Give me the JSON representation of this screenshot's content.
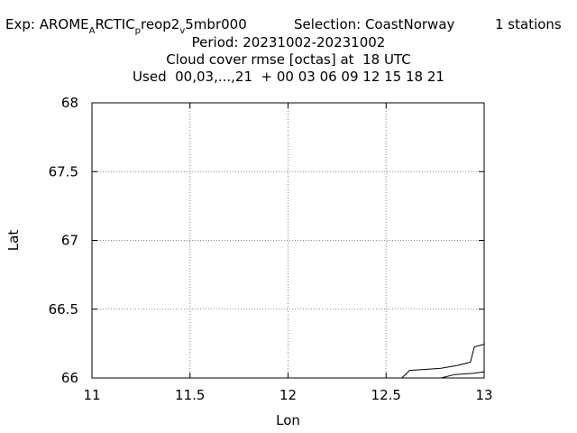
{
  "header": {
    "exp_prefix": "Exp: AROME",
    "exp_sub1": "A",
    "exp_mid": "RCTIC",
    "exp_sub2": "p",
    "exp_mid2": "reop2",
    "exp_sub3": "v",
    "exp_end": "5mbr000",
    "selection": "Selection: CoastNorway",
    "stations": "1 stations",
    "period": "Period: 20231002-20231002",
    "subtitle": "Cloud cover rmse [octas] at  18 UTC",
    "used": "Used  00,03,...,21  + 00 03 06 09 12 15 18 21"
  },
  "chart_data": {
    "type": "map",
    "xlabel": "Lon",
    "ylabel": "Lat",
    "xlim": [
      11,
      13
    ],
    "ylim": [
      66,
      68
    ],
    "xticks": [
      {
        "value": 11,
        "label": "11"
      },
      {
        "value": 11.5,
        "label": "11.5"
      },
      {
        "value": 12,
        "label": "12"
      },
      {
        "value": 12.5,
        "label": "12.5"
      },
      {
        "value": 13,
        "label": "13"
      }
    ],
    "yticks": [
      {
        "value": 66,
        "label": "66"
      },
      {
        "value": 66.5,
        "label": "66.5"
      },
      {
        "value": 67,
        "label": "67"
      },
      {
        "value": 67.5,
        "label": "67.5"
      },
      {
        "value": 68,
        "label": "68"
      }
    ],
    "grid": true,
    "coastlines": [
      {
        "points": [
          [
            12.58,
            66.0
          ],
          [
            12.62,
            66.055
          ],
          [
            12.7,
            66.062
          ],
          [
            12.78,
            66.07
          ],
          [
            12.86,
            66.09
          ],
          [
            12.93,
            66.115
          ],
          [
            12.95,
            66.225
          ],
          [
            13.0,
            66.245
          ]
        ]
      },
      {
        "points": [
          [
            12.78,
            66.0
          ],
          [
            12.85,
            66.025
          ],
          [
            12.95,
            66.035
          ],
          [
            13.0,
            66.045
          ]
        ]
      }
    ]
  }
}
